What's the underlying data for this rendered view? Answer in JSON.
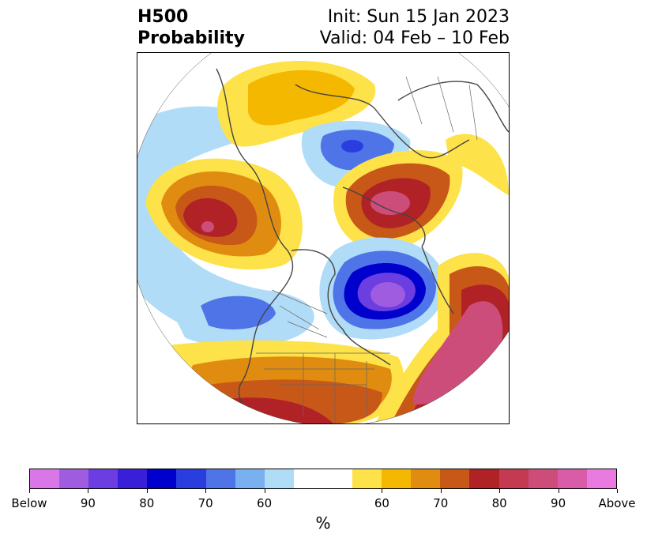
{
  "title": {
    "line1_left": "H500",
    "line2_left": "Probability",
    "line1_right": "Init: Sun 15 Jan 2023",
    "line2_right": "Valid: 04 Feb – 10 Feb"
  },
  "colorbar": {
    "unit_label": "%",
    "colors": [
      "#d977e8",
      "#a05ce0",
      "#6c3de0",
      "#3a1fd8",
      "#0000cc",
      "#2a3ee0",
      "#4f74e8",
      "#78b0f0",
      "#b0dcf8",
      "#ffffff",
      "#ffffff",
      "#fde24a",
      "#f5b800",
      "#e08c10",
      "#c85818",
      "#b02226",
      "#c43a50",
      "#cc4d7a",
      "#d95ca8",
      "#e87ae0"
    ],
    "tick_labels": [
      "Below",
      "90",
      "80",
      "70",
      "60",
      "60",
      "70",
      "80",
      "90",
      "Above"
    ]
  },
  "map": {
    "projection": "north-polar-stereographic",
    "description_colors": {
      "above_high": "#cc4d7a",
      "above_med": "#b02226",
      "above_low": "#fde24a",
      "below_high": "#a05ce0",
      "below_med": "#0000cc",
      "below_low": "#b0dcf8"
    }
  }
}
